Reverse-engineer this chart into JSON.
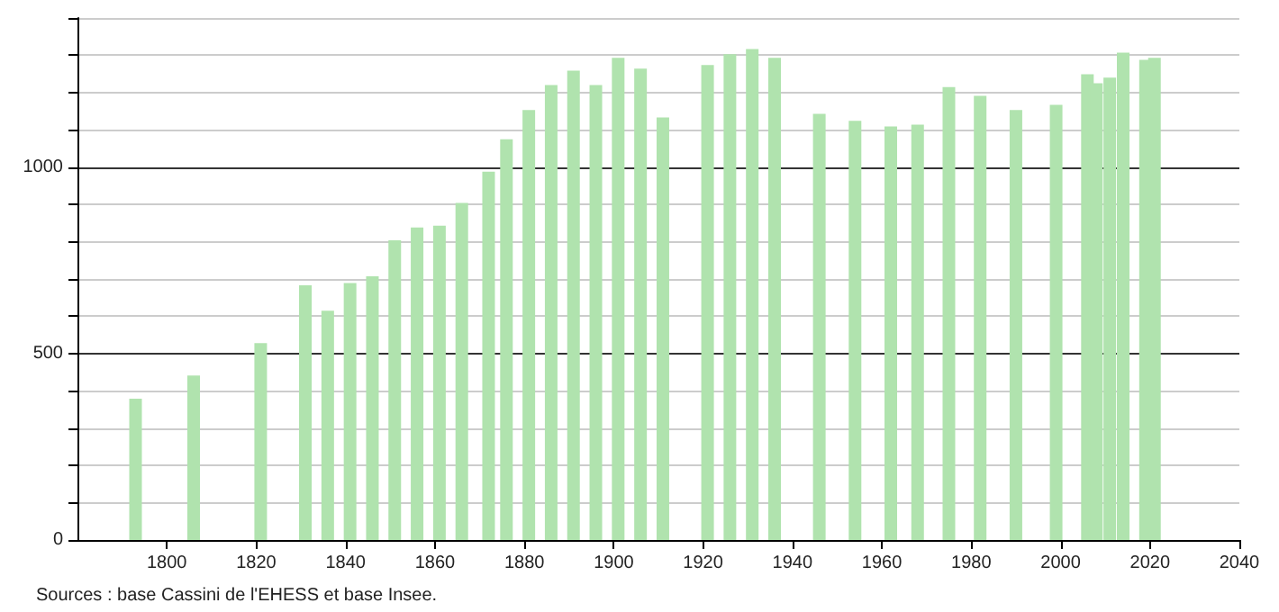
{
  "chart_data": {
    "type": "bar",
    "x": [
      1793,
      1806,
      1821,
      1831,
      1836,
      1841,
      1846,
      1851,
      1856,
      1861,
      1866,
      1872,
      1876,
      1881,
      1886,
      1891,
      1896,
      1901,
      1906,
      1911,
      1921,
      1926,
      1931,
      1936,
      1946,
      1954,
      1962,
      1968,
      1975,
      1982,
      1990,
      1999,
      2006,
      2008,
      2011,
      2014,
      2019,
      2021
    ],
    "values": [
      379,
      441,
      528,
      683,
      615,
      689,
      707,
      804,
      838,
      843,
      904,
      988,
      1075,
      1153,
      1220,
      1259,
      1220,
      1293,
      1264,
      1133,
      1274,
      1303,
      1317,
      1293,
      1143,
      1124,
      1109,
      1114,
      1215,
      1191,
      1153,
      1167,
      1249,
      1225,
      1240,
      1307,
      1288,
      1293
    ],
    "color": "#b0e3ae",
    "xlim": [
      1780,
      2040
    ],
    "xticks": [
      1800,
      1820,
      1840,
      1860,
      1880,
      1900,
      1920,
      1940,
      1960,
      1980,
      2000,
      2020,
      2040
    ],
    "ylim": [
      0,
      1400
    ],
    "yticks": [
      0,
      {
        "value": 100,
        "label": null
      },
      {
        "value": 200,
        "label": null
      },
      {
        "value": 300,
        "label": null
      },
      {
        "value": 400,
        "label": null
      },
      500,
      {
        "value": 600,
        "label": null
      },
      {
        "value": 700,
        "label": null
      },
      {
        "value": 800,
        "label": null
      },
      {
        "value": 900,
        "label": null
      },
      1000,
      {
        "value": 1100,
        "label": null
      },
      {
        "value": 1200,
        "label": null
      },
      {
        "value": 1300,
        "label": null
      },
      {
        "value": 1400,
        "label": null
      }
    ],
    "grid": "y",
    "annotations": [
      "Sources : base Cassini de l'EHESS et base Insee."
    ]
  }
}
